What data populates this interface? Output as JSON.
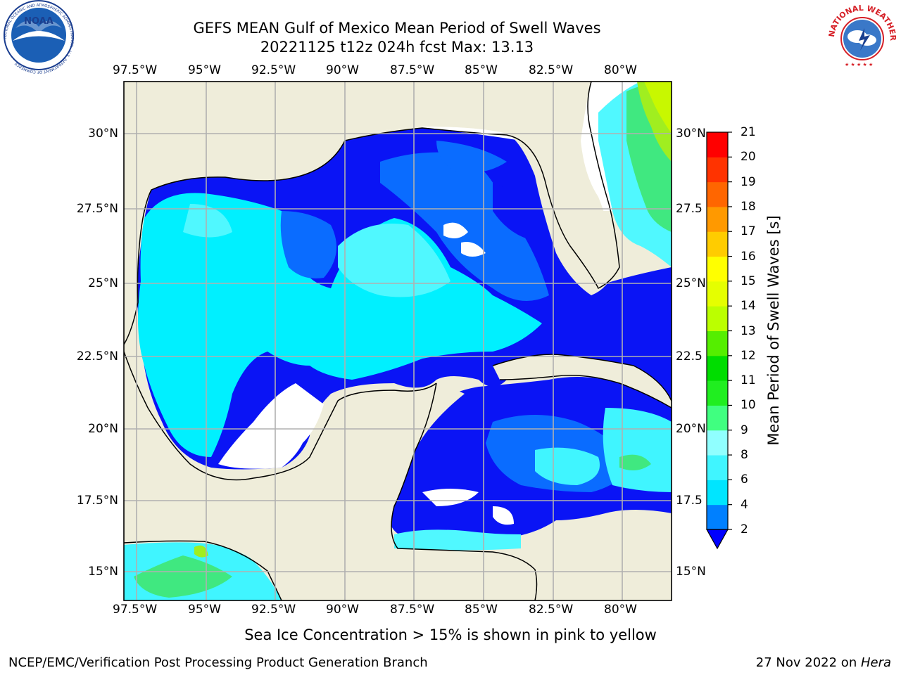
{
  "header": {
    "title_line1": "GEFS MEAN Gulf of Mexico Mean Period of Swell Waves",
    "title_line2": "20221125 t12z 024h fcst   Max: 13.13"
  },
  "logos": {
    "left": "NOAA",
    "left_ring": "NATIONAL OCEANIC AND ATMOSPHERIC ADMINISTRATION · U.S. DEPARTMENT OF COMMERCE",
    "right_ring": "NATIONAL WEATHER SERVICE"
  },
  "map": {
    "lon_ticks": [
      "97.5°W",
      "95°W",
      "92.5°W",
      "90°W",
      "87.5°W",
      "85°W",
      "82.5°W",
      "80°W"
    ],
    "lat_ticks_left": [
      "30°N",
      "27.5°N",
      "25°N",
      "22.5°N",
      "20°N",
      "17.5°N",
      "15°N"
    ],
    "lat_ticks_right": [
      "30°N",
      "27.5",
      "25°N",
      "22.5",
      "20°N",
      "17.5",
      "15°N"
    ]
  },
  "colorbar": {
    "label": "Mean Period of Swell Waves [s]",
    "ticks": [
      "2",
      "4",
      "6",
      "8",
      "9",
      "10",
      "11",
      "12",
      "13",
      "14",
      "15",
      "16",
      "17",
      "18",
      "19",
      "20",
      "21"
    ],
    "colors": [
      "#0000ff",
      "#0080ff",
      "#00e5ff",
      "#40f5ff",
      "#90ffff",
      "#40ff80",
      "#20ee20",
      "#00dd00",
      "#55ee00",
      "#bbff00",
      "#e5ff00",
      "#ffff00",
      "#ffcc00",
      "#ff9900",
      "#ff6600",
      "#ff3300",
      "#ff0000"
    ]
  },
  "note": "Sea Ice Concentration > 15% is shown in pink to yellow",
  "footer": {
    "left": "NCEP/EMC/Verification Post Processing Product Generation Branch",
    "right_date": "27 Nov 2022 on ",
    "right_host": "Hera"
  }
}
